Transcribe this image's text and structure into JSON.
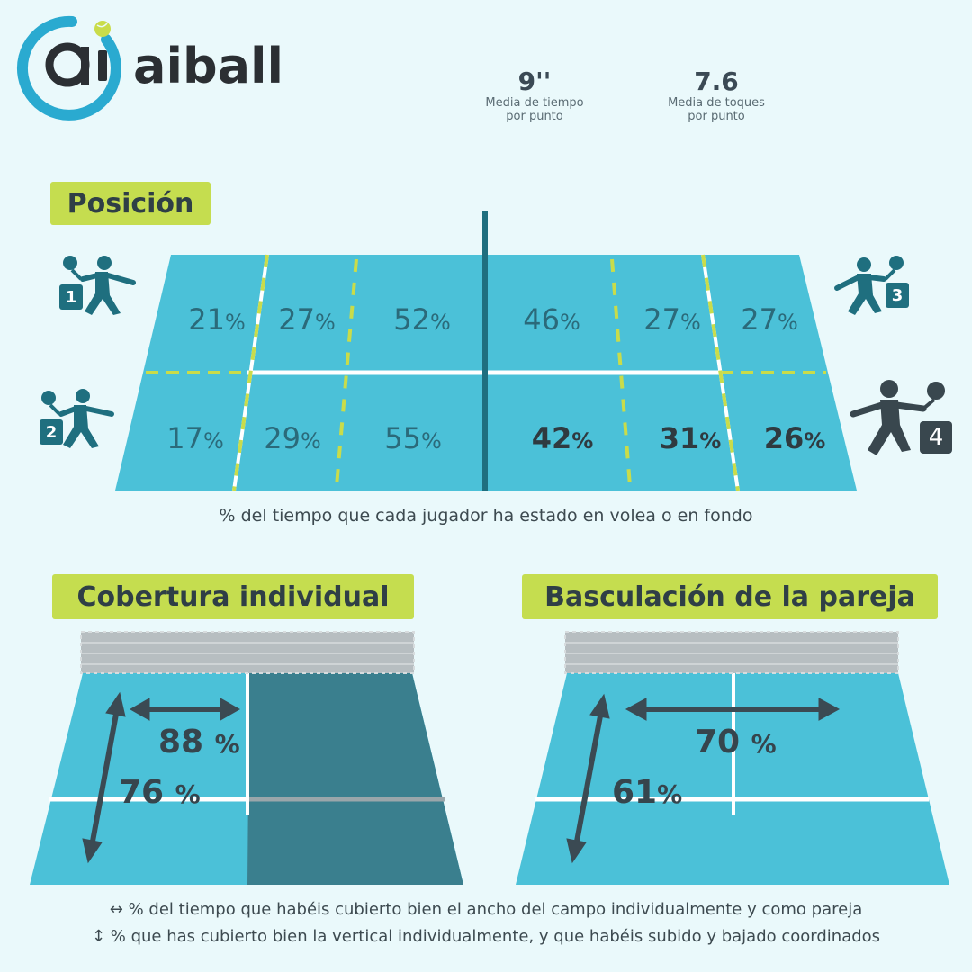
{
  "brand": {
    "name": "aiball"
  },
  "stats": [
    {
      "value": "9''",
      "label_line1": "Media de tiempo",
      "label_line2": "por punto"
    },
    {
      "value": "7.6",
      "label_line1": "Media de toques",
      "label_line2": "por punto"
    }
  ],
  "sections": {
    "position": "Posición",
    "individual": "Cobertura individual",
    "pair": "Basculación de la pareja"
  },
  "position_court": {
    "top_row": [
      "21",
      "27",
      "52",
      "46",
      "27",
      "27"
    ],
    "bottom_row": [
      "17",
      "29",
      "55",
      "42",
      "31",
      "26"
    ],
    "unit": "%",
    "caption": "% del tiempo que cada jugador ha estado en volea o en fondo",
    "players": [
      "1",
      "2",
      "3",
      "4"
    ]
  },
  "individual_court": {
    "horizontal": "88",
    "vertical": "76",
    "unit": "%"
  },
  "pair_court": {
    "horizontal": "70",
    "vertical": "61",
    "unit": "%"
  },
  "footer": {
    "line1": "↔ % del tiempo que habéis cubierto bien el ancho del campo individualmente y como pareja",
    "line2": "↕ % que has cubierto bien la vertical individualmente, y que habéis subido y bajado coordinados"
  },
  "colors": {
    "court": "#4bc1d8",
    "court_dark": "#3a7f8e",
    "tag": "#c5dd4f",
    "logo_ring": "#2aaad0",
    "ball": "#c9dc4a"
  }
}
